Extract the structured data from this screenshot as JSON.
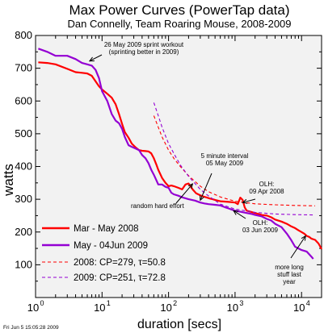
{
  "chart_data": {
    "type": "line",
    "title": "Max Power Curves (PowerTap data)",
    "subtitle": "Dan Connelly, Team Roaring Mouse, 2008-2009",
    "xlabel": "duration [secs]",
    "ylabel": "watts",
    "x_scale": "log",
    "xlim": [
      1,
      20000
    ],
    "ylim": [
      0,
      800
    ],
    "x_ticks": [
      {
        "value": 1,
        "label": "10",
        "exp": "0"
      },
      {
        "value": 10,
        "label": "10",
        "exp": "1"
      },
      {
        "value": 100,
        "label": "10",
        "exp": "2"
      },
      {
        "value": 1000,
        "label": "10",
        "exp": "3"
      },
      {
        "value": 10000,
        "label": "10",
        "exp": "4"
      }
    ],
    "y_ticks": [
      {
        "value": 100,
        "label": "100"
      },
      {
        "value": 200,
        "label": "200"
      },
      {
        "value": 300,
        "label": "300"
      },
      {
        "value": 400,
        "label": "400"
      },
      {
        "value": 500,
        "label": "500"
      },
      {
        "value": 600,
        "label": "600"
      },
      {
        "value": 700,
        "label": "700"
      },
      {
        "value": 800,
        "label": "800"
      }
    ],
    "grid": false,
    "legend_position": "bottom-left",
    "series": [
      {
        "name": "Mar - May 2008",
        "color": "#ff0000",
        "style": "solid",
        "x": [
          1.1,
          1.5,
          2,
          3,
          4,
          5,
          6,
          7,
          8,
          9,
          10,
          12,
          14,
          16,
          18,
          20,
          22,
          25,
          28,
          32,
          36,
          40,
          45,
          50,
          55,
          60,
          65,
          70,
          80,
          90,
          100,
          110,
          120,
          140,
          160,
          180,
          200,
          230,
          260,
          300,
          340,
          380,
          420,
          460,
          500,
          550,
          600,
          700,
          800,
          900,
          1000,
          1100,
          1200,
          1300,
          1400,
          1500,
          1700,
          2000,
          2500,
          3000,
          3500,
          4000,
          5000,
          6000,
          7000,
          8000,
          9000,
          10000,
          11000,
          12000,
          13000,
          14000,
          16000,
          18000,
          20000
        ],
        "y": [
          718,
          716,
          712,
          698,
          688,
          686,
          684,
          677,
          660,
          645,
          635,
          622,
          610,
          590,
          560,
          530,
          505,
          488,
          470,
          458,
          450,
          448,
          447,
          446,
          440,
          425,
          408,
          390,
          365,
          350,
          340,
          342,
          340,
          335,
          330,
          345,
          348,
          330,
          318,
          312,
          308,
          305,
          302,
          300,
          298,
          296,
          294,
          293,
          292,
          291,
          290,
          285,
          305,
          298,
          275,
          265,
          262,
          258,
          252,
          250,
          245,
          238,
          232,
          225,
          217,
          212,
          205,
          200,
          195,
          188,
          185,
          180,
          176,
          165,
          148
        ]
      },
      {
        "name": "May - 04Jun 2009",
        "color": "#9400d3",
        "style": "solid",
        "x": [
          1.1,
          1.5,
          2,
          3,
          4,
          5,
          6,
          7,
          8,
          9,
          10,
          12,
          14,
          16,
          18,
          20,
          22,
          25,
          28,
          32,
          36,
          40,
          45,
          50,
          55,
          60,
          65,
          70,
          80,
          90,
          100,
          110,
          120,
          140,
          160,
          180,
          200,
          250,
          300,
          350,
          400,
          500,
          600,
          700,
          800,
          900,
          1000,
          1200,
          1500,
          1800,
          2000,
          2500,
          3000,
          3500,
          4000,
          5000,
          6000,
          7000,
          8000,
          10000,
          12000,
          14000,
          15000
        ],
        "y": [
          760,
          750,
          738,
          738,
          728,
          716,
          712,
          708,
          695,
          670,
          630,
          600,
          560,
          540,
          532,
          515,
          490,
          465,
          460,
          455,
          450,
          435,
          425,
          410,
          390,
          375,
          360,
          345,
          345,
          338,
          335,
          320,
          315,
          311,
          306,
          303,
          300,
          296,
          290,
          287,
          285,
          283,
          281,
          276,
          272,
          268,
          265,
          262,
          258,
          255,
          252,
          248,
          240,
          235,
          225,
          215,
          195,
          175,
          155,
          145,
          140,
          125,
          118
        ]
      },
      {
        "name": "2008: CP=279, τ=50.8",
        "color": "#ff0000",
        "style": "dashed",
        "x": [
          60,
          70,
          80,
          100,
          120,
          150,
          200,
          300,
          400,
          600,
          1000,
          2000,
          4000,
          8000,
          16000
        ],
        "y": [
          555,
          520,
          490,
          450,
          425,
          400,
          372,
          340,
          323,
          307,
          294,
          286,
          283,
          281,
          280
        ]
      },
      {
        "name": "2009: CP=251, τ=72.8",
        "color": "#9400d3",
        "style": "dashed",
        "x": [
          60,
          70,
          80,
          100,
          120,
          150,
          200,
          300,
          400,
          600,
          1000,
          2000,
          4000,
          8000,
          16000
        ],
        "y": [
          595,
          555,
          520,
          470,
          440,
          405,
          370,
          330,
          310,
          285,
          270,
          260,
          255,
          253,
          252
        ]
      }
    ],
    "annotations": [
      {
        "lines": [
          "26 May 2009 sprint workout",
          "(sprinting better in 2009)"
        ],
        "arrow_to": {
          "x": 6.5,
          "y": 722
        }
      },
      {
        "lines": [
          "5 minute interval",
          "05 May 2009"
        ],
        "arrow_to": {
          "x": 300,
          "y": 297
        }
      },
      {
        "lines": [
          "OLH:",
          "09 Apr 2008"
        ],
        "arrow_to": {
          "x": 1300,
          "y": 290
        }
      },
      {
        "lines": [
          "random hard effort"
        ],
        "arrow_to": {
          "x": 230,
          "y": 347
        }
      },
      {
        "lines": [
          "OLH:",
          "03 Jun 2009"
        ],
        "arrow_to": {
          "x": 950,
          "y": 265
        }
      },
      {
        "lines": [
          "more long",
          "stuff last",
          "year"
        ],
        "arrow_to": {
          "x": 11500,
          "y": 188
        }
      }
    ]
  },
  "footer": {
    "timestamp": "Fri Jun  5 15:05:28 2009"
  }
}
